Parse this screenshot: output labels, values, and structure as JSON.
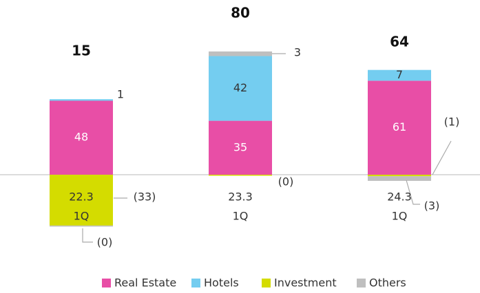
{
  "chart_data": {
    "type": "bar",
    "stacked": true,
    "categories": [
      "22.3",
      "23.3",
      "24.3"
    ],
    "category_sublabels": [
      "1Q",
      "1Q",
      "1Q"
    ],
    "totals": [
      15,
      80,
      64
    ],
    "series": [
      {
        "name": "Real Estate",
        "color": "#e84ea6",
        "values": [
          48,
          35,
          61
        ]
      },
      {
        "name": "Hotels",
        "color": "#74cdf0",
        "values": [
          1,
          42,
          7
        ]
      },
      {
        "name": "Investment",
        "color": "#d4dc00",
        "values": [
          -33,
          -0.2,
          -1
        ],
        "value_labels": [
          "(33)",
          "(0)",
          "(1)"
        ]
      },
      {
        "name": "Others",
        "color": "#bfbfbf",
        "values": [
          -0.2,
          3,
          -3
        ],
        "value_labels": [
          "(0)",
          "3",
          "(3)"
        ]
      }
    ],
    "ylim": [
      -40,
      90
    ],
    "legend": "bottom"
  }
}
